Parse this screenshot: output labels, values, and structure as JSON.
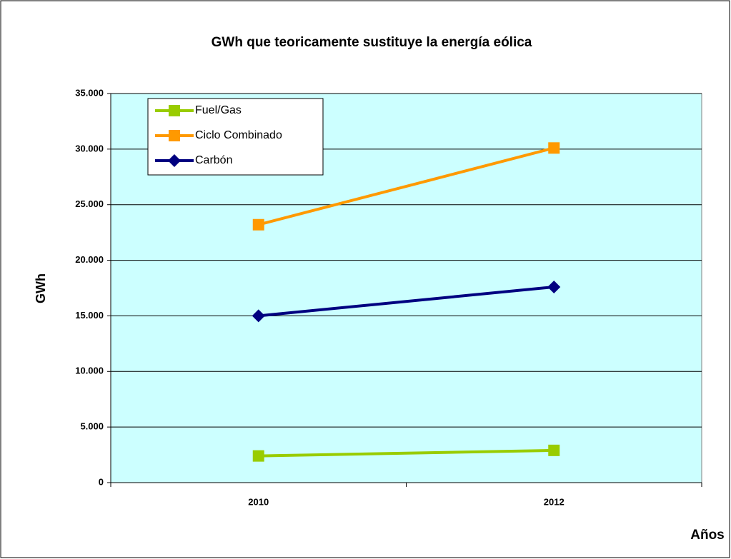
{
  "chart_data": {
    "type": "line",
    "title": "GWh que teoricamente sustituye la energía eólica",
    "x_label": "Años",
    "y_label": "GWh",
    "categories": [
      "2010",
      "2012"
    ],
    "series": [
      {
        "name": "Fuel/Gas",
        "color": "#99cc00",
        "marker": "square",
        "values": [
          2400,
          2900
        ]
      },
      {
        "name": "Ciclo Combinado",
        "color": "#ff9900",
        "marker": "square",
        "values": [
          23200,
          30100
        ]
      },
      {
        "name": "Carbón",
        "color": "#000080",
        "marker": "diamond",
        "values": [
          15000,
          17600
        ]
      }
    ],
    "ylim": [
      0,
      35000
    ],
    "yticks": [
      0,
      {
        "value": 5000,
        "label": "5.000"
      },
      {
        "value": 10000,
        "label": "10.000"
      },
      {
        "value": 15000,
        "label": "15.000"
      },
      {
        "value": 20000,
        "label": "20.000"
      },
      {
        "value": 25000,
        "label": "25.000"
      },
      {
        "value": 30000,
        "label": "30.000"
      },
      {
        "value": 35000,
        "label": "35.000"
      }
    ],
    "grid": true,
    "legend": "upper left",
    "plot_background": "#ccffff"
  }
}
